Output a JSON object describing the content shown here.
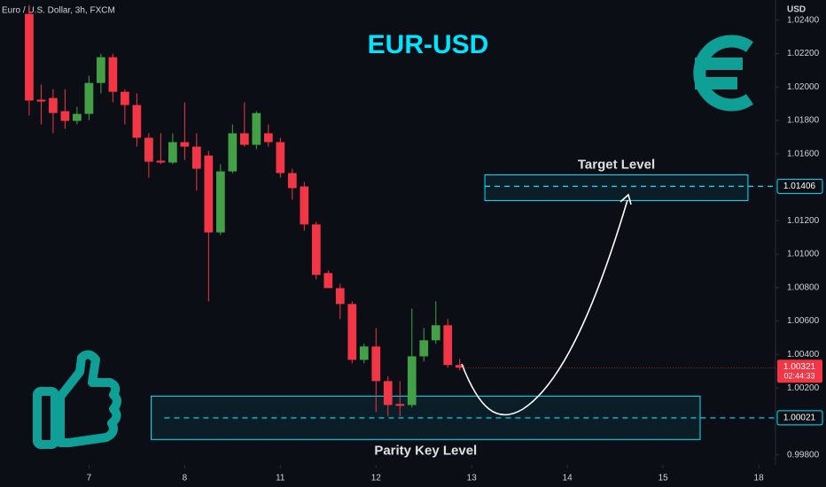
{
  "chart_data": {
    "type": "candlestick",
    "header": "Euro / U.S. Dollar, 3h, FXCM",
    "currency": "USD",
    "title": "EUR-USD",
    "countdown": "02:44:33",
    "up_color": "#43a047",
    "down_color": "#f23645",
    "series": [
      {
        "open": [
          1.02437,
          1.01924,
          1.01934,
          1.01855,
          1.01797,
          1.01839,
          1.02024,
          1.02178,
          1.01971,
          1.01892,
          1.01696,
          1.01559,
          1.01548,
          1.0167,
          1.01643,
          1.0159,
          1.0113,
          1.01495,
          1.01723,
          1.01654,
          1.01723,
          1.0167,
          1.01485,
          1.01405,
          1.01178,
          1.00887,
          1.00797,
          1.00702,
          1.00368,
          1.00448,
          1.00241,
          1.00104,
          1.00098,
          1.00389,
          1.00485,
          1.00575,
          1.00337
        ],
        "close": [
          1.01919,
          1.01913,
          1.01844,
          1.01797,
          1.01839,
          1.02024,
          1.02178,
          1.01971,
          1.01892,
          1.01696,
          1.01553,
          1.01548,
          1.0167,
          1.01643,
          1.01511,
          1.0113,
          1.01495,
          1.01723,
          1.01654,
          1.01844,
          1.0167,
          1.01485,
          1.01395,
          1.01178,
          1.00876,
          1.00797,
          1.00702,
          1.00368,
          1.00448,
          1.00241,
          1.00098,
          1.00093,
          1.00389,
          1.00485,
          1.00575,
          1.00337,
          1.00321
        ],
        "high": [
          1.0249,
          1.02014,
          1.01987,
          1.01987,
          1.01881,
          1.02067,
          1.02199,
          1.02199,
          1.01987,
          1.01961,
          1.01723,
          1.01723,
          1.01723,
          1.01908,
          1.01723,
          1.01617,
          1.01538,
          1.01776,
          1.01908,
          1.01855,
          1.01776,
          1.01696,
          1.01511,
          1.01432,
          1.01194,
          1.00903,
          1.00823,
          1.00718,
          1.00464,
          1.00559,
          1.0027,
          1.00241,
          1.00675,
          1.00559,
          1.00718,
          1.00612,
          1.00374
        ],
        "low": [
          1.01829,
          1.01776,
          1.01723,
          1.01749,
          1.01776,
          1.01802,
          1.01961,
          1.01908,
          1.01776,
          1.01643,
          1.01458,
          1.01538,
          1.01538,
          1.01564,
          1.01379,
          1.00718,
          1.01114,
          1.01485,
          1.01643,
          1.01628,
          1.01643,
          1.01458,
          1.01326,
          1.01141,
          1.0085,
          1.00823,
          1.00612,
          1.00347,
          1.00347,
          1.00056,
          1.0003,
          1.0003,
          1.00083,
          1.00358,
          1.00464,
          1.00321,
          1.00305
        ]
      }
    ],
    "last_price": 1.00321,
    "levels": [
      {
        "label": "Target Level",
        "price": 1.01406,
        "range": [
          1.01321,
          1.01474
        ],
        "x_range": [
          38.1,
          60.1
        ],
        "line_start": 38.1
      },
      {
        "label": "Parity Key Level",
        "price": 1.00021,
        "range": [
          0.99892,
          1.00151
        ],
        "x_range": [
          10.2,
          56.1
        ],
        "line_start": 11.3
      }
    ],
    "ylim": [
      0.9974,
      1.0252
    ],
    "yticks": [
      {
        "value": 1.024,
        "label": "1.02400"
      },
      {
        "value": 1.022,
        "label": "1.02200"
      },
      {
        "value": 1.02,
        "label": "1.02000"
      },
      {
        "value": 1.018,
        "label": "1.01800"
      },
      {
        "value": 1.016,
        "label": "1.01600"
      },
      {
        "value": 1.012,
        "label": "1.01200"
      },
      {
        "value": 1.01,
        "label": "1.01000"
      },
      {
        "value": 1.008,
        "label": "1.00800"
      },
      {
        "value": 1.006,
        "label": "1.00600"
      },
      {
        "value": 1.004,
        "label": "1.00400"
      },
      {
        "value": 1.002,
        "label": "1.00200"
      },
      {
        "value": 0.998,
        "label": "0.99800"
      }
    ],
    "xlim": [
      -2.44,
      62.4
    ],
    "xticks": [
      {
        "value": 5,
        "label": "7"
      },
      {
        "value": 13,
        "label": "8"
      },
      {
        "value": 21,
        "label": "11"
      },
      {
        "value": 29,
        "label": "12"
      },
      {
        "value": 37,
        "label": "13"
      },
      {
        "value": 45,
        "label": "14"
      },
      {
        "value": 53,
        "label": "15"
      },
      {
        "value": 61,
        "label": "18"
      }
    ],
    "grid": false
  }
}
